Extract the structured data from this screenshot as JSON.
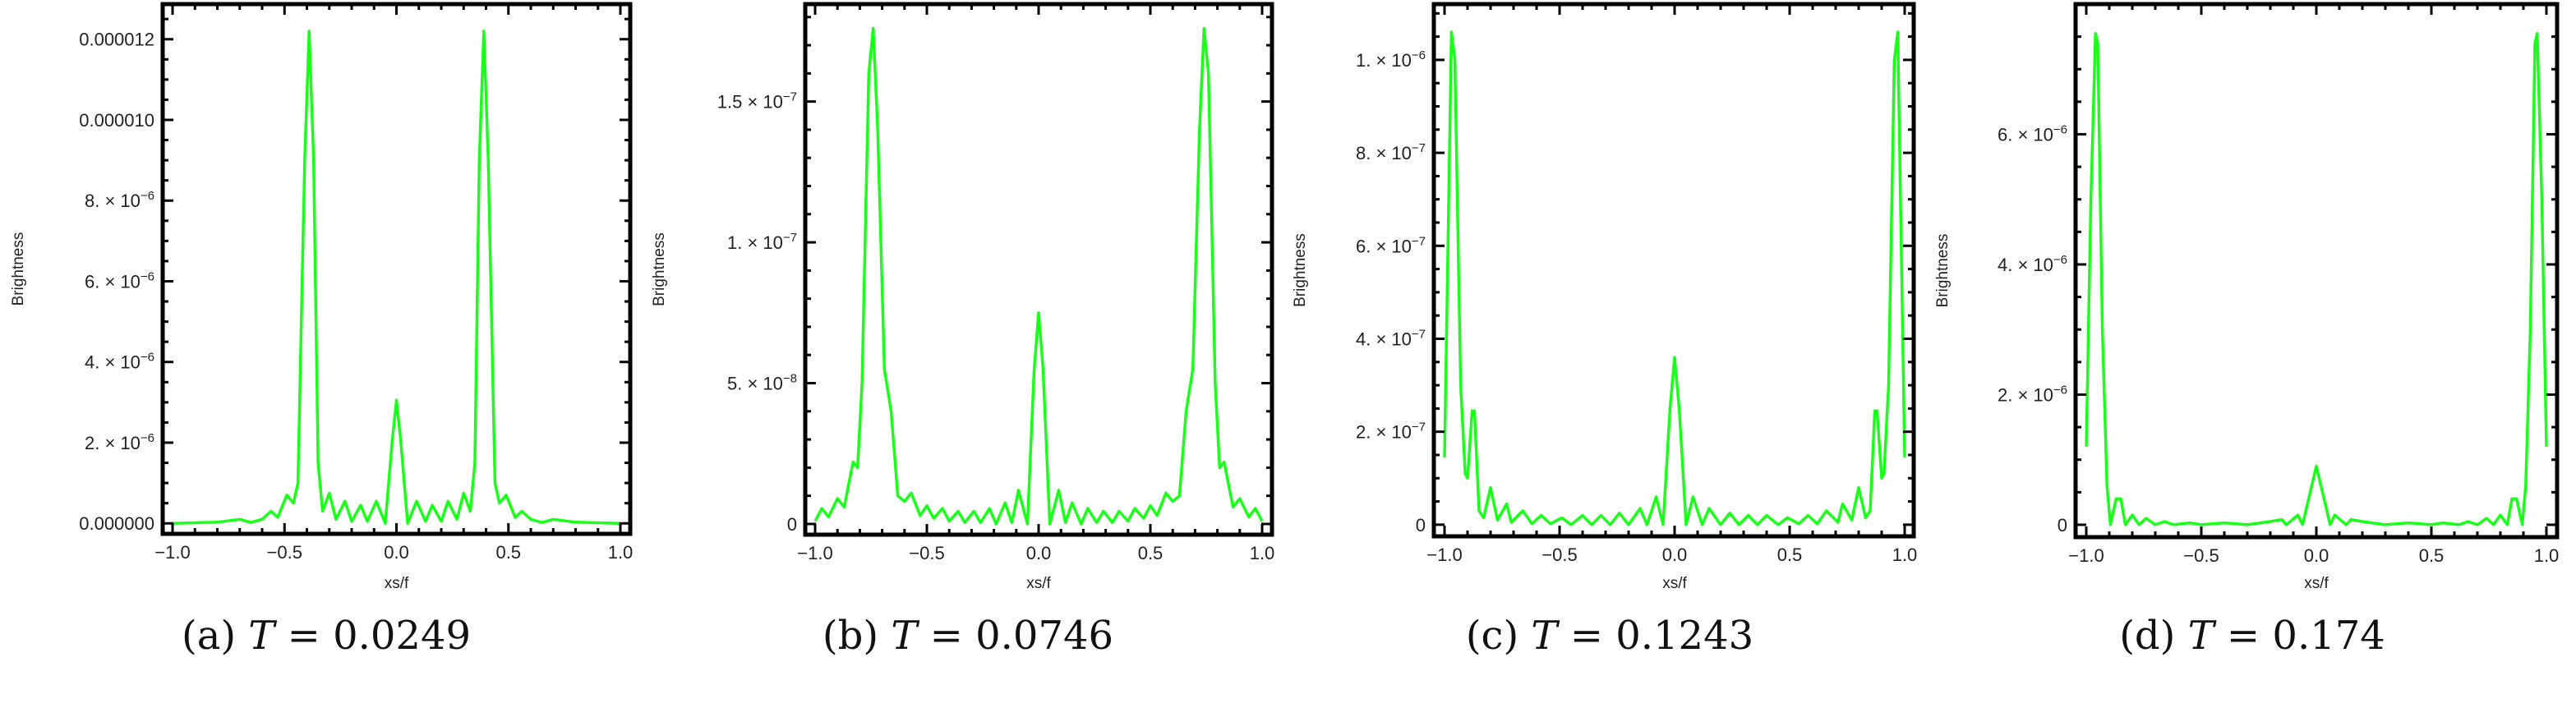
{
  "line_color": "#1aff1a",
  "chart_data": [
    {
      "type": "line",
      "caption": {
        "label": "(a)",
        "var": "T",
        "eq": "=",
        "value": "0.0249"
      },
      "xlabel": "xs/f",
      "ylabel": "Brightness",
      "xlim": [
        -1,
        1
      ],
      "y_unit": 1e-06,
      "ylim": [
        -0.26,
        12.87
      ],
      "xticks": [
        {
          "v": -1,
          "t": "−1.0"
        },
        {
          "v": -0.5,
          "t": "−0.5"
        },
        {
          "v": 0,
          "t": "0.0"
        },
        {
          "v": 0.5,
          "t": "0.5"
        },
        {
          "v": 1,
          "t": "1.0"
        }
      ],
      "x_minor_step": 0.1,
      "yticks": [
        {
          "v": 0,
          "t": "0.000000"
        },
        {
          "v": 2,
          "t": "2. × 10",
          "e": "−6"
        },
        {
          "v": 4,
          "t": "4. × 10",
          "e": "−6"
        },
        {
          "v": 6,
          "t": "6. × 10",
          "e": "−6"
        },
        {
          "v": 8,
          "t": "8. × 10",
          "e": "−6"
        },
        {
          "v": 10,
          "t": "0.000010"
        },
        {
          "v": 12,
          "t": "0.000012"
        }
      ],
      "y_minor_step": 0.5,
      "x": [
        -1,
        -0.8,
        -0.7,
        -0.65,
        -0.6,
        -0.56,
        -0.53,
        -0.49,
        -0.46,
        -0.44,
        -0.41,
        -0.39,
        -0.37,
        -0.35,
        -0.33,
        -0.3,
        -0.27,
        -0.23,
        -0.2,
        -0.16,
        -0.13,
        -0.09,
        -0.05,
        -0.02,
        0,
        0.02,
        0.05,
        0.09,
        0.13,
        0.16,
        0.2,
        0.23,
        0.27,
        0.3,
        0.33,
        0.35,
        0.37,
        0.39,
        0.41,
        0.44,
        0.46,
        0.49,
        0.53,
        0.56,
        0.6,
        0.65,
        0.7,
        0.8,
        1
      ],
      "y": [
        0,
        0.03,
        0.1,
        0.02,
        0.1,
        0.3,
        0.15,
        0.7,
        0.5,
        1.0,
        9.0,
        12.2,
        9.0,
        1.5,
        0.3,
        0.75,
        0.1,
        0.55,
        0.05,
        0.45,
        0.05,
        0.55,
        0,
        2.0,
        3.05,
        2.0,
        0,
        0.55,
        0.05,
        0.45,
        0.05,
        0.55,
        0.1,
        0.75,
        0.3,
        1.5,
        9.0,
        12.2,
        9.0,
        1.0,
        0.5,
        0.7,
        0.15,
        0.3,
        0.1,
        0.02,
        0.1,
        0.03,
        0
      ]
    },
    {
      "type": "line",
      "caption": {
        "label": "(b)",
        "var": "T",
        "eq": "=",
        "value": "0.0746"
      },
      "xlabel": "xs/f",
      "ylabel": "Brightness",
      "xlim": [
        -1,
        1
      ],
      "y_unit": 1e-08,
      "ylim": [
        -0.38,
        18.46
      ],
      "xticks": [
        {
          "v": -1,
          "t": "−1.0"
        },
        {
          "v": -0.5,
          "t": "−0.5"
        },
        {
          "v": 0,
          "t": "0.0"
        },
        {
          "v": 0.5,
          "t": "0.5"
        },
        {
          "v": 1,
          "t": "1.0"
        }
      ],
      "x_minor_step": 0.1,
      "yticks": [
        {
          "v": 0,
          "t": "0"
        },
        {
          "v": 5,
          "t": "5. × 10",
          "e": "−8"
        },
        {
          "v": 10,
          "t": "1. × 10",
          "e": "−7"
        },
        {
          "v": 15,
          "t": "1.5 × 10",
          "e": "−7"
        }
      ],
      "y_minor_step": 1,
      "x": [
        -1,
        -0.97,
        -0.94,
        -0.9,
        -0.87,
        -0.83,
        -0.81,
        -0.79,
        -0.76,
        -0.74,
        -0.72,
        -0.69,
        -0.66,
        -0.63,
        -0.6,
        -0.57,
        -0.53,
        -0.5,
        -0.47,
        -0.43,
        -0.4,
        -0.36,
        -0.33,
        -0.29,
        -0.26,
        -0.22,
        -0.19,
        -0.15,
        -0.12,
        -0.09,
        -0.05,
        -0.02,
        0,
        0.02,
        0.05,
        0.09,
        0.12,
        0.15,
        0.19,
        0.22,
        0.26,
        0.29,
        0.33,
        0.36,
        0.4,
        0.43,
        0.47,
        0.5,
        0.53,
        0.57,
        0.6,
        0.63,
        0.66,
        0.69,
        0.72,
        0.74,
        0.76,
        0.79,
        0.81,
        0.83,
        0.87,
        0.9,
        0.94,
        0.97,
        1
      ],
      "y": [
        0.1,
        0.55,
        0.25,
        0.9,
        0.6,
        2.2,
        2.0,
        5.0,
        16.0,
        17.6,
        14.0,
        5.5,
        4.0,
        1.0,
        0.8,
        1.1,
        0.3,
        0.65,
        0.2,
        0.55,
        0.1,
        0.45,
        0.05,
        0.45,
        0.05,
        0.55,
        0,
        0.75,
        0.05,
        1.2,
        0,
        5.5,
        7.5,
        5.5,
        0,
        1.2,
        0.05,
        0.75,
        0,
        0.55,
        0.05,
        0.45,
        0.05,
        0.45,
        0.1,
        0.55,
        0.2,
        0.65,
        0.3,
        1.1,
        0.8,
        1.0,
        4.0,
        5.5,
        14.0,
        17.6,
        16.0,
        5.0,
        2.0,
        2.2,
        0.6,
        0.9,
        0.25,
        0.55,
        0.1
      ]
    },
    {
      "type": "line",
      "caption": {
        "label": "(c)",
        "var": "T",
        "eq": "=",
        "value": "0.1243"
      },
      "xlabel": "xs/f",
      "ylabel": "Brightness",
      "xlim": [
        -1,
        1
      ],
      "y_unit": 1e-07,
      "ylim": [
        -0.25,
        11.2
      ],
      "xticks": [
        {
          "v": -1,
          "t": "−1.0"
        },
        {
          "v": -0.5,
          "t": "−0.5"
        },
        {
          "v": 0,
          "t": "0.0"
        },
        {
          "v": 0.5,
          "t": "0.5"
        },
        {
          "v": 1,
          "t": "1.0"
        }
      ],
      "x_minor_step": 0.1,
      "yticks": [
        {
          "v": 0,
          "t": "0"
        },
        {
          "v": 2,
          "t": "2. × 10",
          "e": "−7"
        },
        {
          "v": 4,
          "t": "4. × 10",
          "e": "−7"
        },
        {
          "v": 6,
          "t": "6. × 10",
          "e": "−7"
        },
        {
          "v": 8,
          "t": "8. × 10",
          "e": "−7"
        },
        {
          "v": 10,
          "t": "1. × 10",
          "e": "−6"
        }
      ],
      "y_minor_step": 0.5,
      "x": [
        -1,
        -0.97,
        -0.955,
        -0.93,
        -0.91,
        -0.9,
        -0.88,
        -0.87,
        -0.85,
        -0.83,
        -0.8,
        -0.77,
        -0.73,
        -0.71,
        -0.66,
        -0.62,
        -0.58,
        -0.54,
        -0.49,
        -0.45,
        -0.4,
        -0.36,
        -0.32,
        -0.28,
        -0.24,
        -0.2,
        -0.15,
        -0.12,
        -0.08,
        -0.05,
        -0.02,
        0,
        0.02,
        0.05,
        0.08,
        0.12,
        0.15,
        0.2,
        0.24,
        0.28,
        0.32,
        0.36,
        0.4,
        0.45,
        0.49,
        0.54,
        0.58,
        0.62,
        0.66,
        0.71,
        0.73,
        0.77,
        0.8,
        0.83,
        0.85,
        0.87,
        0.88,
        0.9,
        0.91,
        0.93,
        0.955,
        0.97,
        1
      ],
      "y": [
        1.45,
        10.6,
        10.0,
        3.0,
        1.1,
        1.0,
        2.45,
        2.45,
        0.3,
        0.15,
        0.8,
        0.1,
        0.45,
        0.05,
        0.3,
        0.02,
        0.2,
        0.02,
        0.15,
        0,
        0.2,
        0,
        0.2,
        0,
        0.25,
        0,
        0.35,
        0,
        0.6,
        0,
        2.5,
        3.6,
        2.5,
        0,
        0.6,
        0,
        0.35,
        0,
        0.25,
        0,
        0.2,
        0,
        0.2,
        0,
        0.15,
        0.02,
        0.2,
        0.02,
        0.3,
        0.05,
        0.45,
        0.1,
        0.8,
        0.15,
        0.3,
        2.45,
        2.45,
        1.0,
        1.1,
        3.0,
        10.0,
        10.6,
        1.45
      ]
    },
    {
      "type": "line",
      "caption": {
        "label": "(d)",
        "var": "T",
        "eq": "=",
        "value": "0.174"
      },
      "xlabel": "xs/f",
      "ylabel": "Brightness",
      "xlim": [
        -1,
        1
      ],
      "y_unit": 1e-06,
      "ylim": [
        -0.19,
        8.0
      ],
      "xticks": [
        {
          "v": -1,
          "t": "−1.0"
        },
        {
          "v": -0.5,
          "t": "−0.5"
        },
        {
          "v": 0,
          "t": "0.0"
        },
        {
          "v": 0.5,
          "t": "0.5"
        },
        {
          "v": 1,
          "t": "1.0"
        }
      ],
      "x_minor_step": 0.1,
      "yticks": [
        {
          "v": 0,
          "t": "0"
        },
        {
          "v": 2,
          "t": "2. × 10",
          "e": "−6"
        },
        {
          "v": 4,
          "t": "4. × 10",
          "e": "−6"
        },
        {
          "v": 6,
          "t": "6. × 10",
          "e": "−6"
        }
      ],
      "y_minor_step": 0.5,
      "x": [
        -1,
        -0.98,
        -0.96,
        -0.95,
        -0.93,
        -0.91,
        -0.895,
        -0.87,
        -0.85,
        -0.83,
        -0.8,
        -0.77,
        -0.74,
        -0.7,
        -0.66,
        -0.62,
        -0.55,
        -0.5,
        -0.4,
        -0.3,
        -0.2,
        -0.15,
        -0.13,
        -0.08,
        -0.06,
        -0.02,
        0,
        0.02,
        0.06,
        0.08,
        0.13,
        0.15,
        0.2,
        0.3,
        0.4,
        0.5,
        0.55,
        0.62,
        0.66,
        0.7,
        0.74,
        0.77,
        0.8,
        0.83,
        0.85,
        0.87,
        0.895,
        0.91,
        0.93,
        0.95,
        0.96,
        0.98,
        1
      ],
      "y": [
        1.2,
        5.0,
        7.55,
        7.4,
        3.0,
        0.6,
        0,
        0.4,
        0.4,
        0,
        0.15,
        0,
        0.1,
        0,
        0.05,
        0,
        0.03,
        0,
        0.03,
        0,
        0.05,
        0.08,
        0,
        0.15,
        0,
        0.6,
        0.9,
        0.6,
        0,
        0.15,
        0,
        0.08,
        0.05,
        0,
        0.03,
        0,
        0.03,
        0,
        0.05,
        0,
        0.1,
        0,
        0.15,
        0,
        0.4,
        0.4,
        0,
        0.6,
        3.0,
        7.4,
        7.55,
        5.0,
        1.2
      ]
    }
  ]
}
